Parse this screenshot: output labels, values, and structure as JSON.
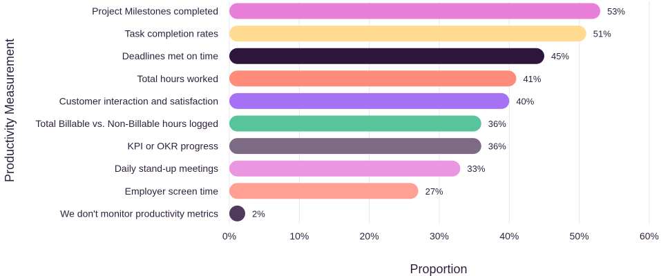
{
  "chart_data": {
    "type": "bar",
    "orientation": "horizontal",
    "title": "",
    "xlabel": "Proportion",
    "ylabel": "Productivity Measurement",
    "xlim": [
      0,
      60
    ],
    "x_ticks": [
      0,
      10,
      20,
      30,
      40,
      50,
      60
    ],
    "x_tick_labels": [
      "0%",
      "10%",
      "20%",
      "30%",
      "40%",
      "50%",
      "60%"
    ],
    "grid": "vertical",
    "legend": "none",
    "categories": [
      "Project Milestones completed",
      "Task completion rates",
      "Deadlines met on time",
      "Total hours worked",
      "Customer interaction and satisfaction",
      "Total Billable vs. Non-Billable hours logged",
      "KPI or OKR progress",
      "Daily stand-up meetings",
      "Employer screen time",
      "We don't monitor productivity metrics"
    ],
    "values": [
      53,
      51,
      45,
      41,
      40,
      36,
      36,
      33,
      27,
      2
    ],
    "value_labels": [
      "53%",
      "51%",
      "45%",
      "41%",
      "40%",
      "36%",
      "36%",
      "33%",
      "27%",
      "2%"
    ],
    "colors": [
      "#e87fd9",
      "#ffdb91",
      "#2d1639",
      "#ff8b7a",
      "#a671f5",
      "#57c49c",
      "#7d6b85",
      "#ea96e0",
      "#ffa092",
      "#4f3a5c"
    ]
  }
}
